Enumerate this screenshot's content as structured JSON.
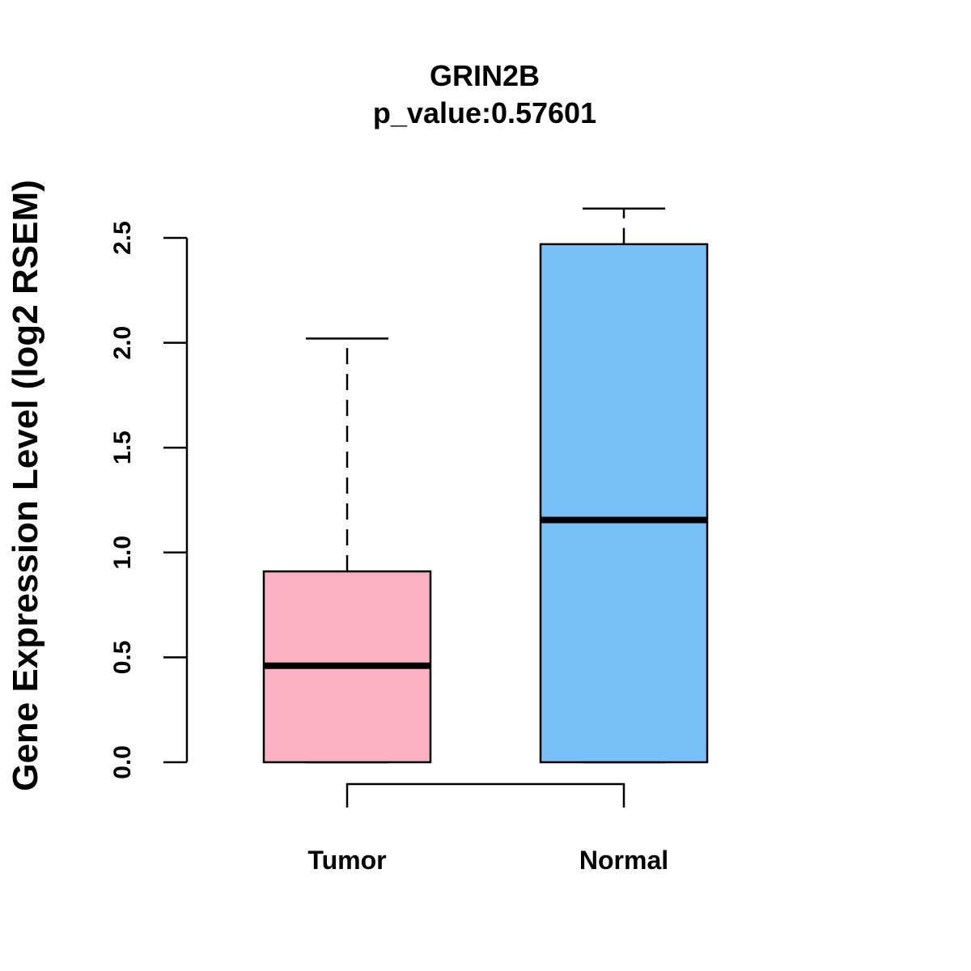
{
  "chart_data": {
    "type": "boxplot",
    "title": "GRIN2B",
    "subtitle": "p_value:0.57601",
    "xlabel": "",
    "ylabel": "Gene Expression Level (log2 RSEM)",
    "ylim": [
      0,
      2.5
    ],
    "yticks": [
      0.0,
      0.5,
      1.0,
      1.5,
      2.0,
      2.5
    ],
    "ytick_labels": [
      "0.0",
      "0.5",
      "1.0",
      "1.5",
      "2.0",
      "2.5"
    ],
    "grid": false,
    "groups": [
      {
        "name": "Tumor",
        "color": "#FBB0C3",
        "min": 0.0,
        "q1": 0.0,
        "median": 0.46,
        "q3": 0.91,
        "max": 2.02
      },
      {
        "name": "Normal",
        "color": "#77C0F8",
        "min": 0.0,
        "q1": 0.0,
        "median": 1.155,
        "q3": 2.47,
        "max": 2.64
      }
    ],
    "comparison_bracket": [
      "Tumor",
      "Normal"
    ]
  }
}
